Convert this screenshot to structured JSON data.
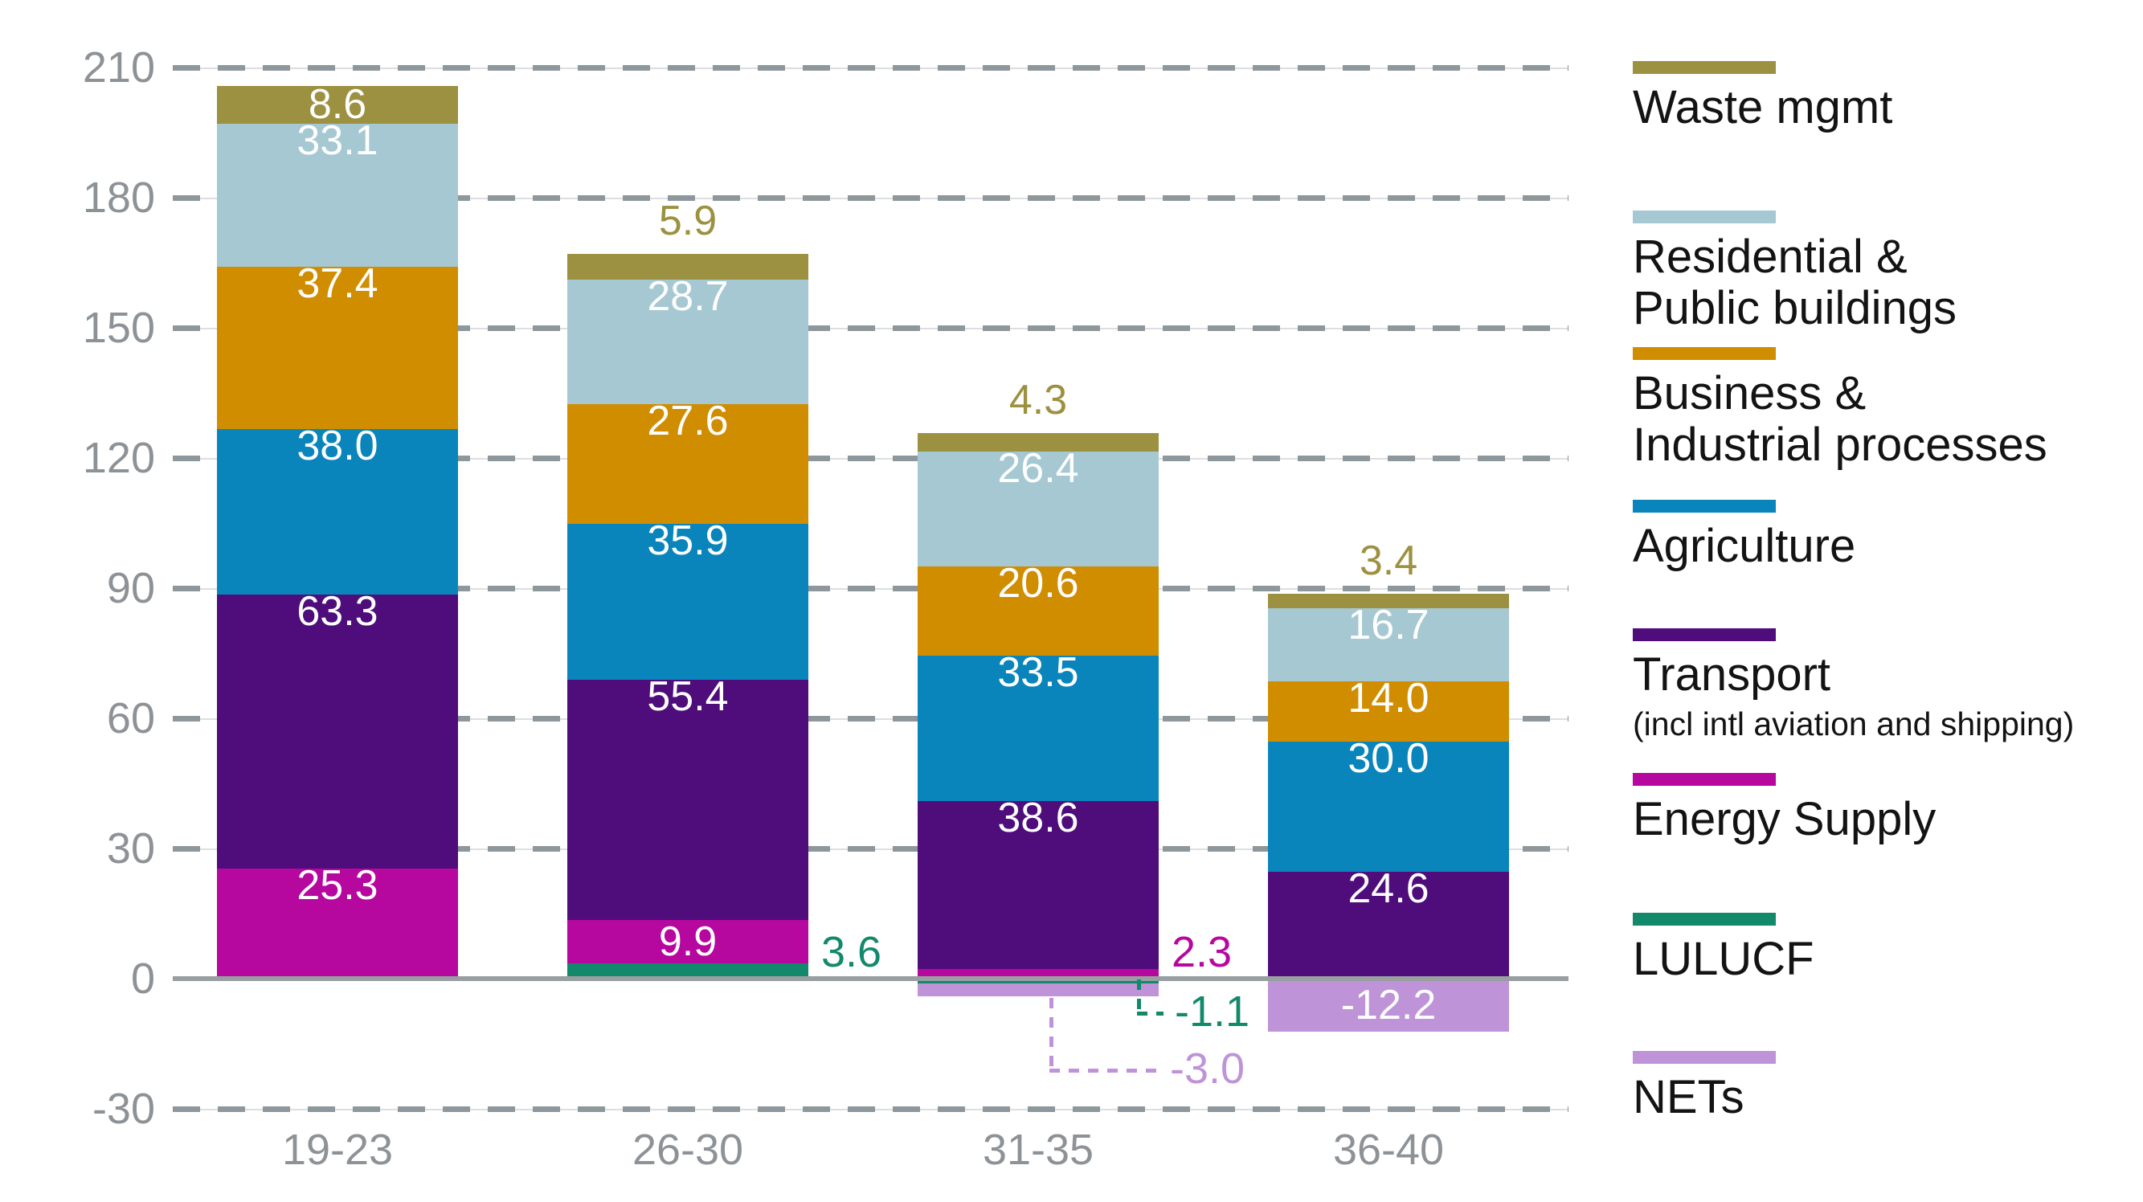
{
  "chart_data": {
    "type": "bar",
    "stacked": true,
    "title": "",
    "categories": [
      "19-23",
      "26-30",
      "31-35",
      "36-40"
    ],
    "series": [
      {
        "name": "Waste mgmt",
        "color": "#9c9140",
        "values": [
          8.6,
          5.9,
          4.3,
          3.4
        ]
      },
      {
        "name": "Residential & Public buildings",
        "color": "#a5c8d2",
        "values": [
          33.1,
          28.7,
          26.4,
          16.7
        ]
      },
      {
        "name": "Business & Industrial processes",
        "color": "#d08d00",
        "values": [
          37.4,
          27.6,
          20.6,
          14.0
        ]
      },
      {
        "name": "Agriculture",
        "color": "#0a85bc",
        "values": [
          38.0,
          35.9,
          33.5,
          30.0
        ]
      },
      {
        "name": "Transport (incl intl aviation and shipping)",
        "color": "#4e0d7b",
        "values": [
          63.3,
          55.4,
          38.6,
          24.6
        ]
      },
      {
        "name": "Energy Supply",
        "color": "#b6079f",
        "values": [
          25.3,
          9.9,
          2.3,
          null
        ]
      },
      {
        "name": "LULUCF",
        "color": "#13896b",
        "values": [
          null,
          3.6,
          -1.1,
          null
        ]
      },
      {
        "name": "NETs",
        "color": "#bf93d8",
        "values": [
          null,
          null,
          -3.0,
          -12.2
        ]
      }
    ],
    "stack_order_bottom_up": [
      "LULUCF",
      "Energy Supply",
      "Transport (incl intl aviation and shipping)",
      "Agriculture",
      "Business & Industrial processes",
      "Residential & Public buildings",
      "Waste mgmt"
    ],
    "negative_order_top_down": [
      "LULUCF",
      "NETs"
    ],
    "ylim": [
      -30,
      210
    ],
    "yticks": [
      "210",
      "180",
      "150",
      "120",
      "90",
      "60",
      "30",
      "0",
      "-30"
    ],
    "grid": "horizontal dashed gridlines, solid zero line over bars",
    "legend_position": "right"
  },
  "value_labels": [
    {
      "bar": 0,
      "series": "Energy Supply",
      "text": "25.3",
      "style": "inside"
    },
    {
      "bar": 0,
      "series": "Transport (incl intl aviation and shipping)",
      "text": "63.3",
      "style": "inside"
    },
    {
      "bar": 0,
      "series": "Agriculture",
      "text": "38.0",
      "style": "inside"
    },
    {
      "bar": 0,
      "series": "Business & Industrial processes",
      "text": "37.4",
      "style": "inside"
    },
    {
      "bar": 0,
      "series": "Residential & Public buildings",
      "text": "33.1",
      "style": "inside"
    },
    {
      "bar": 0,
      "series": "Waste mgmt",
      "text": "8.6",
      "style": "inside"
    },
    {
      "bar": 1,
      "series": "LULUCF",
      "text": "3.6",
      "style": "right"
    },
    {
      "bar": 1,
      "series": "Energy Supply",
      "text": "9.9",
      "style": "inside"
    },
    {
      "bar": 1,
      "series": "Transport (incl intl aviation and shipping)",
      "text": "55.4",
      "style": "inside"
    },
    {
      "bar": 1,
      "series": "Agriculture",
      "text": "35.9",
      "style": "inside"
    },
    {
      "bar": 1,
      "series": "Business & Industrial processes",
      "text": "27.6",
      "style": "inside"
    },
    {
      "bar": 1,
      "series": "Residential & Public buildings",
      "text": "28.7",
      "style": "inside"
    },
    {
      "bar": 1,
      "series": "Waste mgmt",
      "text": "5.9",
      "style": "above"
    },
    {
      "bar": 2,
      "series": "Energy Supply",
      "text": "2.3",
      "style": "right"
    },
    {
      "bar": 2,
      "series": "Transport (incl intl aviation and shipping)",
      "text": "38.6",
      "style": "inside"
    },
    {
      "bar": 2,
      "series": "Agriculture",
      "text": "33.5",
      "style": "inside"
    },
    {
      "bar": 2,
      "series": "Business & Industrial processes",
      "text": "20.6",
      "style": "inside"
    },
    {
      "bar": 2,
      "series": "Residential & Public buildings",
      "text": "26.4",
      "style": "inside"
    },
    {
      "bar": 2,
      "series": "Waste mgmt",
      "text": "4.3",
      "style": "above"
    },
    {
      "bar": 2,
      "series": "LULUCF",
      "text": "-1.1",
      "style": "leader"
    },
    {
      "bar": 2,
      "series": "NETs",
      "text": "-3.0",
      "style": "leader"
    },
    {
      "bar": 3,
      "series": "Transport (incl intl aviation and shipping)",
      "text": "24.6",
      "style": "inside"
    },
    {
      "bar": 3,
      "series": "Agriculture",
      "text": "30.0",
      "style": "inside"
    },
    {
      "bar": 3,
      "series": "Business & Industrial processes",
      "text": "14.0",
      "style": "inside"
    },
    {
      "bar": 3,
      "series": "Residential & Public buildings",
      "text": "16.7",
      "style": "inside"
    },
    {
      "bar": 3,
      "series": "Waste mgmt",
      "text": "3.4",
      "style": "above"
    },
    {
      "bar": 3,
      "series": "NETs",
      "text": "-12.2",
      "style": "inside"
    }
  ],
  "legend": {
    "items": [
      {
        "id": "waste-mgmt",
        "lines": [
          "Waste mgmt"
        ],
        "color": "#9c9140"
      },
      {
        "id": "residential-buildings",
        "lines": [
          "Residential &",
          "Public buildings"
        ],
        "color": "#a5c8d2"
      },
      {
        "id": "business-industrial",
        "lines": [
          "Business &",
          "Industrial processes"
        ],
        "color": "#d08d00"
      },
      {
        "id": "agriculture",
        "lines": [
          "Agriculture"
        ],
        "color": "#0a85bc"
      },
      {
        "id": "transport",
        "lines": [
          "Transport"
        ],
        "sublabel": "(incl intl aviation and shipping)",
        "color": "#4e0d7b"
      },
      {
        "id": "energy-supply",
        "lines": [
          "Energy Supply"
        ],
        "color": "#b6079f"
      },
      {
        "id": "lulucf",
        "lines": [
          "LULUCF"
        ],
        "color": "#13896b"
      },
      {
        "id": "nets",
        "lines": [
          "NETs"
        ],
        "color": "#bf93d8"
      }
    ]
  },
  "colors": {
    "axis_text": "#8d9297",
    "grid_dash": "#8e979b",
    "grid_faint": "#dcdedf",
    "zero_line": "#989ea1",
    "value_text": "#ffffff",
    "background": "#ffffff"
  }
}
